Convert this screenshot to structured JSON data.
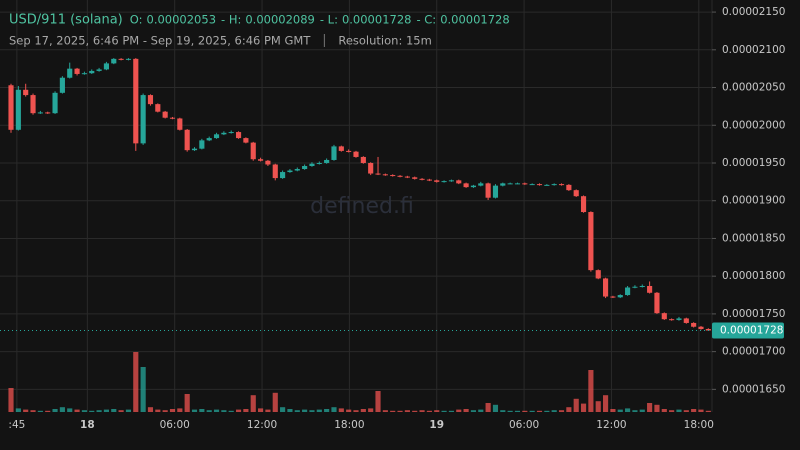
{
  "chart_data": {
    "type": "candlestick",
    "title": "USD/911 (solana)",
    "ohlc_labels": [
      "O:",
      "- H:",
      "- L:",
      "- C:"
    ],
    "ohlc": [
      2.053e-05,
      2.089e-05,
      1.728e-05,
      1.728e-05
    ],
    "subtitle": "Sep 17, 2025, 6:46 PM - Sep 19, 2025, 6:46 PM GMT",
    "resolution": "Resolution: 15m",
    "watermark": "defined.fi",
    "x": [
      1,
      2,
      3,
      4,
      5,
      6,
      7,
      8,
      9,
      10,
      11,
      12,
      13,
      14,
      15,
      16,
      17,
      18,
      19,
      20,
      21,
      22,
      23,
      24,
      25,
      26,
      27,
      28,
      29,
      30,
      31,
      32,
      33,
      34,
      35,
      36,
      37,
      38,
      39,
      40,
      41,
      42,
      43,
      44,
      45,
      46,
      47,
      48,
      49,
      50,
      51,
      52,
      53,
      54,
      55,
      56,
      57,
      58,
      59,
      60,
      61,
      62,
      63,
      64,
      65,
      66,
      67,
      68,
      69,
      70,
      71,
      72,
      73,
      74,
      75,
      76,
      77,
      78,
      79,
      80,
      81,
      82,
      83,
      84,
      85,
      86,
      87,
      88,
      89,
      90,
      91,
      92,
      93,
      94,
      95,
      96
    ],
    "open": [
      2.053e-05,
      1.994e-05,
      2.047e-05,
      2.04e-05,
      2.016e-05,
      2.017e-05,
      2.016e-05,
      2.043e-05,
      2.063e-05,
      2.075e-05,
      2.068e-05,
      2.069e-05,
      2.072e-05,
      2.074e-05,
      2.082e-05,
      2.088e-05,
      2.087e-05,
      2.088e-05,
      1.976e-05,
      2.04e-05,
      2.028e-05,
      2.018e-05,
      2.01e-05,
      2.009e-05,
      1.994e-05,
      1.967e-05,
      1.969e-05,
      1.98e-05,
      1.983e-05,
      1.988e-05,
      1.99e-05,
      1.991e-05,
      1.983e-05,
      1.977e-05,
      1.955e-05,
      1.953e-05,
      1.948e-05,
      1.93e-05,
      1.938e-05,
      1.94e-05,
      1.942e-05,
      1.946e-05,
      1.949e-05,
      1.95e-05,
      1.954e-05,
      1.972e-05,
      1.966e-05,
      1.965e-05,
      1.958e-05,
      1.95e-05,
      1.936e-05,
      1.935e-05,
      1.934e-05,
      1.933e-05,
      1.932e-05,
      1.931e-05,
      1.929e-05,
      1.928e-05,
      1.927e-05,
      1.925e-05,
      1.926e-05,
      1.927e-05,
      1.923e-05,
      1.918e-05,
      1.92e-05,
      1.923e-05,
      1.904e-05,
      1.92e-05,
      1.923e-05,
      1.923e-05,
      1.923e-05,
      1.922e-05,
      1.922e-05,
      1.921e-05,
      1.921e-05,
      1.922e-05,
      1.921e-05,
      1.914e-05,
      1.906e-05,
      1.885e-05,
      1.808e-05,
      1.797e-05,
      1.773e-05,
      1.772e-05,
      1.775e-05,
      1.785e-05,
      1.786e-05,
      1.787e-05,
      1.778e-05,
      1.751e-05,
      1.743e-05,
      1.742e-05,
      1.744e-05,
      1.738e-05,
      1.733e-05,
      1.73e-05
    ],
    "high": [
      2.055e-05,
      2.052e-05,
      2.055e-05,
      2.042e-05,
      2.019e-05,
      2.018e-05,
      2.045e-05,
      2.065e-05,
      2.083e-05,
      2.076e-05,
      2.071e-05,
      2.074e-05,
      2.076e-05,
      2.084e-05,
      2.089e-05,
      2.089e-05,
      2.089e-05,
      2.089e-05,
      2.042e-05,
      2.041e-05,
      2.029e-05,
      2.019e-05,
      2.011e-05,
      2.01e-05,
      1.995e-05,
      1.971e-05,
      1.982e-05,
      1.985e-05,
      1.99e-05,
      1.992e-05,
      1.993e-05,
      1.992e-05,
      1.984e-05,
      1.978e-05,
      1.957e-05,
      1.954e-05,
      1.949e-05,
      1.94e-05,
      1.942e-05,
      1.944e-05,
      1.948e-05,
      1.951e-05,
      1.952e-05,
      1.956e-05,
      1.974e-05,
      1.973e-05,
      1.968e-05,
      1.966e-05,
      1.959e-05,
      1.951e-05,
      1.958e-05,
      1.936e-05,
      1.935e-05,
      1.934e-05,
      1.933e-05,
      1.932e-05,
      1.93e-05,
      1.929e-05,
      1.928e-05,
      1.927e-05,
      1.928e-05,
      1.928e-05,
      1.924e-05,
      1.921e-05,
      1.925e-05,
      1.924e-05,
      1.922e-05,
      1.924e-05,
      1.924e-05,
      1.924e-05,
      1.924e-05,
      1.923e-05,
      1.923e-05,
      1.922e-05,
      1.923e-05,
      1.923e-05,
      1.922e-05,
      1.915e-05,
      1.907e-05,
      1.886e-05,
      1.809e-05,
      1.798e-05,
      1.774e-05,
      1.776e-05,
      1.787e-05,
      1.788e-05,
      1.789e-05,
      1.793e-05,
      1.779e-05,
      1.752e-05,
      1.744e-05,
      1.746e-05,
      1.745e-05,
      1.739e-05,
      1.734e-05,
      1.731e-05
    ],
    "low": [
      1.99e-05,
      1.993e-05,
      2.038e-05,
      2.014e-05,
      2.015e-05,
      2.015e-05,
      2.015e-05,
      2.042e-05,
      2.062e-05,
      2.066e-05,
      2.067e-05,
      2.068e-05,
      2.071e-05,
      2.073e-05,
      2.081e-05,
      2.086e-05,
      2.086e-05,
      1.966e-05,
      1.974e-05,
      2.026e-05,
      2.017e-05,
      2.009e-05,
      2.008e-05,
      1.993e-05,
      1.965e-05,
      1.966e-05,
      1.968e-05,
      1.979e-05,
      1.982e-05,
      1.987e-05,
      1.989e-05,
      1.982e-05,
      1.976e-05,
      1.953e-05,
      1.952e-05,
      1.946e-05,
      1.927e-05,
      1.929e-05,
      1.937e-05,
      1.939e-05,
      1.941e-05,
      1.945e-05,
      1.948e-05,
      1.949e-05,
      1.953e-05,
      1.965e-05,
      1.964e-05,
      1.957e-05,
      1.949e-05,
      1.934e-05,
      1.934e-05,
      1.933e-05,
      1.932e-05,
      1.931e-05,
      1.93e-05,
      1.928e-05,
      1.927e-05,
      1.926e-05,
      1.924e-05,
      1.924e-05,
      1.925e-05,
      1.922e-05,
      1.917e-05,
      1.917e-05,
      1.919e-05,
      1.901e-05,
      1.903e-05,
      1.919e-05,
      1.922e-05,
      1.922e-05,
      1.921e-05,
      1.921e-05,
      1.92e-05,
      1.92e-05,
      1.92e-05,
      1.92e-05,
      1.913e-05,
      1.905e-05,
      1.884e-05,
      1.806e-05,
      1.796e-05,
      1.771e-05,
      1.771e-05,
      1.771e-05,
      1.774e-05,
      1.784e-05,
      1.785e-05,
      1.777e-05,
      1.75e-05,
      1.742e-05,
      1.741e-05,
      1.741e-05,
      1.737e-05,
      1.732e-05,
      1.729e-05,
      1.728e-05
    ],
    "close": [
      1.994e-05,
      2.047e-05,
      2.04e-05,
      2.016e-05,
      2.017e-05,
      2.016e-05,
      2.043e-05,
      2.063e-05,
      2.075e-05,
      2.068e-05,
      2.069e-05,
      2.072e-05,
      2.074e-05,
      2.082e-05,
      2.088e-05,
      2.087e-05,
      2.088e-05,
      1.976e-05,
      2.04e-05,
      2.028e-05,
      2.018e-05,
      2.01e-05,
      2.009e-05,
      1.994e-05,
      1.967e-05,
      1.969e-05,
      1.98e-05,
      1.983e-05,
      1.988e-05,
      1.99e-05,
      1.991e-05,
      1.983e-05,
      1.977e-05,
      1.955e-05,
      1.953e-05,
      1.948e-05,
      1.93e-05,
      1.938e-05,
      1.94e-05,
      1.942e-05,
      1.946e-05,
      1.949e-05,
      1.95e-05,
      1.954e-05,
      1.972e-05,
      1.966e-05,
      1.965e-05,
      1.958e-05,
      1.95e-05,
      1.936e-05,
      1.935e-05,
      1.934e-05,
      1.933e-05,
      1.932e-05,
      1.931e-05,
      1.929e-05,
      1.928e-05,
      1.927e-05,
      1.925e-05,
      1.926e-05,
      1.927e-05,
      1.923e-05,
      1.918e-05,
      1.92e-05,
      1.923e-05,
      1.904e-05,
      1.92e-05,
      1.923e-05,
      1.923e-05,
      1.923e-05,
      1.922e-05,
      1.922e-05,
      1.921e-05,
      1.921e-05,
      1.922e-05,
      1.921e-05,
      1.914e-05,
      1.906e-05,
      1.885e-05,
      1.808e-05,
      1.797e-05,
      1.773e-05,
      1.772e-05,
      1.775e-05,
      1.785e-05,
      1.786e-05,
      1.787e-05,
      1.778e-05,
      1.751e-05,
      1.743e-05,
      1.742e-05,
      1.744e-05,
      1.738e-05,
      1.733e-05,
      1.73e-05,
      1.728e-05
    ],
    "volume": [
      40,
      6,
      4,
      3,
      2,
      2,
      5,
      8,
      6,
      4,
      3,
      2,
      3,
      4,
      5,
      3,
      4,
      100,
      75,
      8,
      4,
      3,
      5,
      6,
      30,
      4,
      5,
      3,
      4,
      3,
      2,
      4,
      5,
      28,
      6,
      4,
      32,
      8,
      5,
      3,
      4,
      3,
      4,
      5,
      8,
      6,
      4,
      3,
      5,
      6,
      35,
      3,
      2,
      2,
      3,
      2,
      3,
      2,
      3,
      2,
      2,
      4,
      5,
      3,
      4,
      15,
      12,
      3,
      2,
      2,
      2,
      2,
      2,
      2,
      3,
      3,
      8,
      22,
      14,
      70,
      18,
      28,
      5,
      4,
      6,
      3,
      4,
      15,
      12,
      5,
      3,
      4,
      3,
      5,
      4,
      2
    ],
    "xlim": [
      -0.5,
      96.5
    ],
    "ylim": [
      1.62e-05,
      2.166e-05
    ],
    "yticks": [
      {
        "value": 1.65e-05,
        "label": "0.00001650"
      },
      {
        "value": 1.7e-05,
        "label": "0.00001700"
      },
      {
        "value": 1.75e-05,
        "label": "0.00001750"
      },
      {
        "value": 1.8e-05,
        "label": "0.00001800"
      },
      {
        "value": 1.85e-05,
        "label": "0.00001850"
      },
      {
        "value": 1.9e-05,
        "label": "0.00001900"
      },
      {
        "value": 1.95e-05,
        "label": "0.00001950"
      },
      {
        "value": 2e-05,
        "label": "0.00002000"
      },
      {
        "value": 2.05e-05,
        "label": "0.00002050"
      },
      {
        "value": 2.1e-05,
        "label": "0.00002100"
      },
      {
        "value": 2.15e-05,
        "label": "0.00002150"
      }
    ],
    "xticks": [
      {
        "value": 1.8,
        "label": ":45"
      },
      {
        "value": 11.4,
        "label": "18"
      },
      {
        "value": 23.3,
        "label": "06:00"
      },
      {
        "value": 35.2,
        "label": "12:00"
      },
      {
        "value": 47.1,
        "label": "18:00"
      },
      {
        "value": 59.0,
        "label": "19"
      },
      {
        "value": 70.9,
        "label": "06:00"
      },
      {
        "value": 82.8,
        "label": "12:00"
      },
      {
        "value": 94.7,
        "label": "18:00"
      }
    ],
    "last_price": 1.728e-05,
    "colors": {
      "up": "#26a69a",
      "down": "#ef5350",
      "title": "#4fc3a1"
    },
    "grid": true
  }
}
